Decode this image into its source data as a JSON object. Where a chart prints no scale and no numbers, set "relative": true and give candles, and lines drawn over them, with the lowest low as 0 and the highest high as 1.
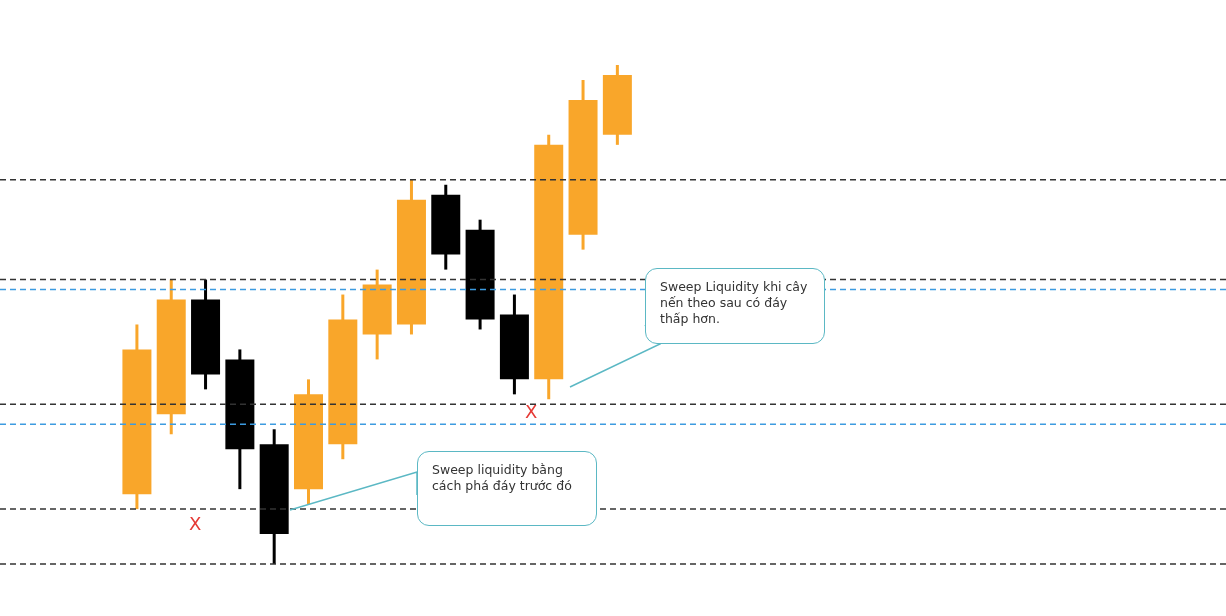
{
  "chart_data": {
    "type": "candlestick",
    "relative": true,
    "categories": [
      null,
      null,
      null,
      null,
      null,
      null,
      null,
      null,
      null,
      null,
      null,
      null,
      null,
      null,
      null
    ],
    "ohlc": [
      [
        0.14,
        0.48,
        0.11,
        0.43
      ],
      [
        0.3,
        0.57,
        0.26,
        0.53
      ],
      [
        0.53,
        0.57,
        0.35,
        0.38
      ],
      [
        0.41,
        0.43,
        0.15,
        0.23
      ],
      [
        0.24,
        0.27,
        0,
        0.06
      ],
      [
        0.15,
        0.37,
        0.12,
        0.34
      ],
      [
        0.24,
        0.54,
        0.21,
        0.49
      ],
      [
        0.46,
        0.59,
        0.41,
        0.56
      ],
      [
        0.48,
        0.77,
        0.46,
        0.73
      ],
      [
        0.74,
        0.76,
        0.59,
        0.62
      ],
      [
        0.67,
        0.69,
        0.47,
        0.49
      ],
      [
        0.5,
        0.54,
        0.34,
        0.37
      ],
      [
        0.37,
        0.86,
        0.33,
        0.84
      ],
      [
        0.66,
        0.97,
        0.63,
        0.93
      ],
      [
        0.86,
        1,
        0.84,
        0.98
      ]
    ],
    "colors": [
      "#f9a62a",
      "#f9a62a",
      "#000000",
      "#000000",
      "#000000",
      "#f9a62a",
      "#f9a62a",
      "#f9a62a",
      "#f9a62a",
      "#000000",
      "#000000",
      "#000000",
      "#f9a62a",
      "#f9a62a",
      "#f9a62a"
    ],
    "ref_lines": [
      {
        "axis": "y",
        "value": 0.57,
        "color": "#333333",
        "line_style": "dashed"
      },
      {
        "axis": "y",
        "value": 0.11,
        "color": "#333333",
        "line_style": "dashed"
      },
      {
        "axis": "y",
        "value": 0,
        "color": "#333333",
        "line_style": "dashed"
      },
      {
        "axis": "y",
        "value": 0.28,
        "color": "#3d9be0",
        "line_style": "dashed"
      },
      {
        "axis": "y",
        "value": 0.55,
        "color": "#3d9be0",
        "line_style": "dashed"
      },
      {
        "axis": "y",
        "value": 0.77,
        "color": "#333333",
        "line_style": "dashed"
      },
      {
        "axis": "y",
        "value": 0.32,
        "color": "#333333",
        "line_style": "dashed"
      }
    ],
    "annotations": [
      "Sweep liquidity bằng cách phá đáy trước đó",
      "Sweep Liquidity khi cây nến theo sau có đáy thấp hơn.",
      "X",
      "X"
    ]
  }
}
